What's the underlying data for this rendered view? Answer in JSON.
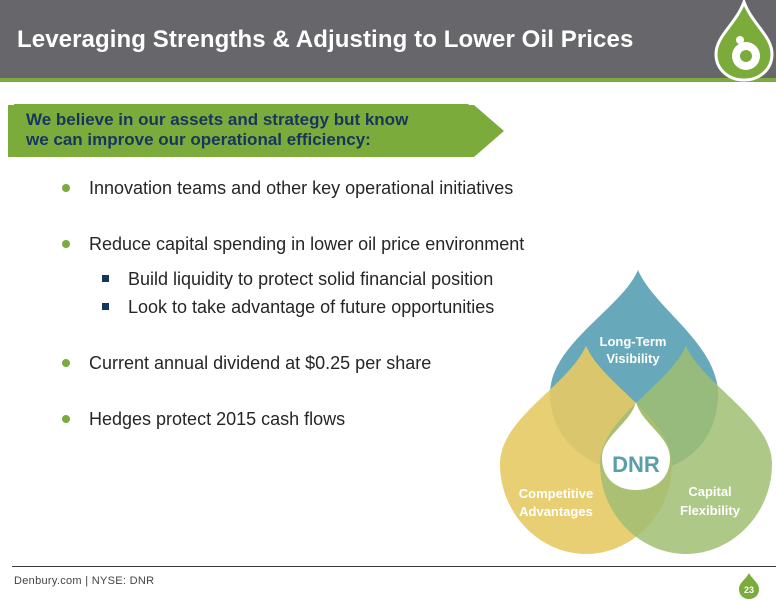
{
  "header": {
    "title": "Leveraging Strengths & Adjusting to Lower Oil Prices"
  },
  "callout": {
    "line1": "We believe in our assets and strategy but know",
    "line2": "we can improve our operational efficiency:"
  },
  "bullets": [
    {
      "text": "Innovation teams and other key operational initiatives"
    },
    {
      "text": "Reduce capital spending in lower oil price environment",
      "sub": [
        {
          "text": "Build liquidity to protect solid financial position"
        },
        {
          "text": "Look to take advantage of future opportunities"
        }
      ]
    },
    {
      "text": "Current annual dividend at $0.25 per share"
    },
    {
      "text": "Hedges protect 2015 cash flows"
    }
  ],
  "diagram": {
    "center": "DNR",
    "top": {
      "line1": "Long-Term",
      "line2": "Visibility"
    },
    "left": {
      "line1": "Competitive",
      "line2": "Advantages"
    },
    "right": {
      "line1": "Capital",
      "line2": "Flexibility"
    }
  },
  "footer": {
    "text": "Denbury.com | NYSE: DNR",
    "page": "23"
  },
  "colors": {
    "header": "#67676b",
    "accent_green": "#7aab3b",
    "navy": "#17365d",
    "drop_blue": "#4d9bae",
    "drop_yellow": "#e2c14a",
    "drop_green": "#8fb35a"
  }
}
